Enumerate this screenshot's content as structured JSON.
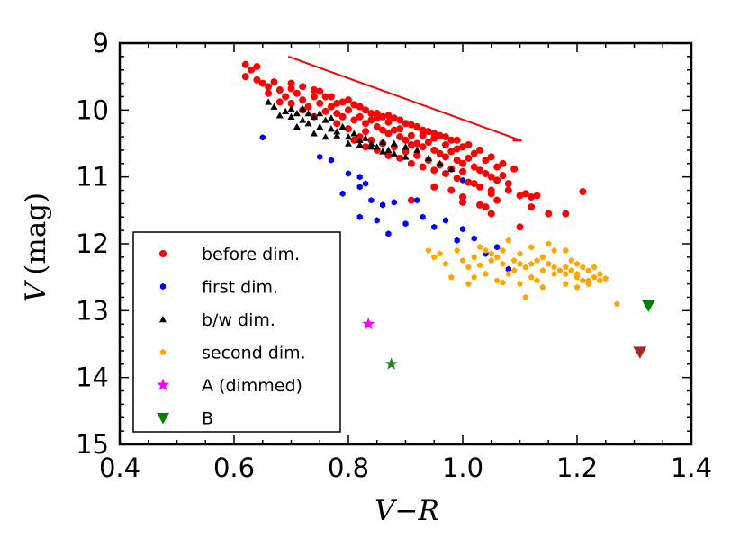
{
  "chart_data": {
    "type": "scatter",
    "title": "",
    "xlabel": "V−R",
    "ylabel_var": "V",
    "ylabel_unit": "(mag)",
    "xlim": [
      0.4,
      1.4
    ],
    "ylim": [
      15,
      9
    ],
    "y_inverted": true,
    "grid": false,
    "legend_placement": "lower-left",
    "x_ticks": [
      "0.4",
      "0.6",
      "0.8",
      "1.0",
      "1.2",
      "1.4"
    ],
    "y_ticks": [
      "9",
      "10",
      "11",
      "12",
      "13",
      "14",
      "15"
    ],
    "series": [
      {
        "name": "before dim.",
        "marker": "circle",
        "color": "#ff0000",
        "points": [
          [
            0.62,
            9.32
          ],
          [
            0.63,
            9.4
          ],
          [
            0.64,
            9.35
          ],
          [
            0.62,
            9.5
          ],
          [
            0.64,
            9.55
          ],
          [
            0.65,
            9.6
          ],
          [
            0.66,
            9.65
          ],
          [
            0.67,
            9.58
          ],
          [
            0.68,
            9.7
          ],
          [
            0.66,
            9.75
          ],
          [
            0.69,
            9.8
          ],
          [
            0.7,
            9.68
          ],
          [
            0.71,
            9.75
          ],
          [
            0.7,
            9.9
          ],
          [
            0.72,
            9.85
          ],
          [
            0.73,
            9.95
          ],
          [
            0.68,
            9.88
          ],
          [
            0.74,
            9.8
          ],
          [
            0.75,
            9.9
          ],
          [
            0.72,
            10.0
          ],
          [
            0.76,
            10.02
          ],
          [
            0.77,
            9.95
          ],
          [
            0.78,
            10.05
          ],
          [
            0.74,
            10.1
          ],
          [
            0.79,
            10.1
          ],
          [
            0.8,
            10.0
          ],
          [
            0.81,
            10.15
          ],
          [
            0.78,
            10.2
          ],
          [
            0.82,
            10.1
          ],
          [
            0.83,
            10.2
          ],
          [
            0.84,
            10.15
          ],
          [
            0.85,
            10.25
          ],
          [
            0.86,
            10.3
          ],
          [
            0.87,
            10.35
          ],
          [
            0.88,
            10.3
          ],
          [
            0.89,
            10.4
          ],
          [
            0.9,
            10.45
          ],
          [
            0.91,
            10.38
          ],
          [
            0.92,
            10.5
          ],
          [
            0.93,
            10.55
          ],
          [
            0.94,
            10.48
          ],
          [
            0.95,
            10.6
          ],
          [
            0.96,
            10.65
          ],
          [
            0.97,
            10.7
          ],
          [
            0.98,
            10.62
          ],
          [
            0.99,
            10.75
          ],
          [
            1.0,
            10.8
          ],
          [
            1.01,
            10.72
          ],
          [
            1.02,
            10.85
          ],
          [
            1.03,
            10.9
          ],
          [
            1.04,
            10.95
          ],
          [
            1.05,
            11.0
          ],
          [
            1.06,
            11.05
          ],
          [
            1.07,
            10.98
          ],
          [
            1.08,
            11.1
          ],
          [
            0.83,
            10.32
          ],
          [
            0.85,
            10.12
          ],
          [
            0.87,
            10.18
          ],
          [
            0.89,
            10.28
          ],
          [
            0.91,
            10.52
          ],
          [
            0.93,
            10.38
          ],
          [
            0.95,
            10.42
          ],
          [
            0.97,
            10.52
          ],
          [
            0.99,
            10.58
          ],
          [
            0.8,
            10.28
          ],
          [
            0.82,
            10.4
          ],
          [
            0.84,
            10.45
          ],
          [
            0.86,
            10.5
          ],
          [
            0.88,
            10.55
          ],
          [
            0.9,
            10.62
          ],
          [
            0.92,
            10.68
          ],
          [
            0.94,
            10.75
          ],
          [
            0.96,
            10.82
          ],
          [
            0.98,
            10.88
          ],
          [
            1.0,
            10.92
          ],
          [
            0.75,
            9.72
          ],
          [
            0.77,
            9.8
          ],
          [
            0.79,
            9.88
          ],
          [
            0.81,
            9.92
          ],
          [
            0.83,
            10.0
          ],
          [
            0.85,
            10.05
          ],
          [
            0.87,
            10.08
          ],
          [
            0.89,
            10.15
          ],
          [
            0.91,
            10.22
          ],
          [
            0.93,
            10.3
          ],
          [
            0.95,
            10.35
          ],
          [
            0.97,
            10.4
          ],
          [
            0.99,
            10.45
          ],
          [
            1.01,
            10.52
          ],
          [
            1.03,
            10.6
          ],
          [
            1.05,
            10.7
          ],
          [
            1.07,
            10.8
          ],
          [
            1.09,
            10.88
          ],
          [
            0.7,
            9.6
          ],
          [
            0.72,
            9.65
          ],
          [
            0.74,
            9.7
          ],
          [
            0.76,
            9.8
          ],
          [
            0.78,
            9.9
          ],
          [
            0.8,
            9.85
          ],
          [
            0.82,
            9.95
          ],
          [
            0.84,
            10.05
          ],
          [
            0.86,
            10.1
          ],
          [
            0.88,
            10.12
          ],
          [
            0.9,
            10.2
          ],
          [
            0.92,
            10.25
          ],
          [
            0.94,
            10.32
          ],
          [
            0.96,
            10.38
          ],
          [
            0.98,
            10.45
          ],
          [
            1.0,
            10.55
          ],
          [
            1.02,
            10.65
          ],
          [
            1.04,
            10.75
          ],
          [
            1.06,
            10.85
          ],
          [
            0.81,
            10.45
          ],
          [
            0.83,
            10.55
          ],
          [
            0.85,
            10.6
          ],
          [
            0.87,
            10.68
          ],
          [
            0.89,
            10.72
          ],
          [
            0.91,
            10.8
          ],
          [
            0.93,
            10.85
          ],
          [
            0.95,
            10.9
          ],
          [
            0.97,
            10.95
          ],
          [
            0.99,
            11.02
          ],
          [
            1.01,
            11.08
          ],
          [
            1.03,
            11.15
          ],
          [
            1.05,
            11.2
          ],
          [
            0.91,
            11.35
          ],
          [
            0.95,
            11.15
          ],
          [
            0.98,
            11.2
          ],
          [
            1.0,
            11.3
          ],
          [
            1.02,
            11.1
          ],
          [
            1.04,
            11.45
          ],
          [
            1.05,
            11.25
          ],
          [
            1.06,
            11.35
          ],
          [
            1.08,
            11.2
          ],
          [
            1.1,
            11.28
          ],
          [
            1.11,
            11.25
          ],
          [
            1.12,
            11.3
          ],
          [
            1.13,
            11.28
          ],
          [
            1.1,
            11.75
          ],
          [
            1.15,
            11.55
          ],
          [
            1.18,
            11.55
          ],
          [
            1.21,
            11.22
          ],
          [
            1.12,
            11.45
          ],
          [
            1.05,
            11.55
          ],
          [
            1.03,
            11.42
          ],
          [
            1.0,
            11.38
          ]
        ]
      },
      {
        "name": "first dim.",
        "marker": "hexagon",
        "color": "#0000ff",
        "points": [
          [
            0.65,
            10.41
          ],
          [
            0.75,
            10.7
          ],
          [
            0.77,
            10.75
          ],
          [
            0.8,
            10.95
          ],
          [
            0.82,
            11.0
          ],
          [
            0.82,
            11.15
          ],
          [
            0.83,
            11.1
          ],
          [
            0.79,
            11.25
          ],
          [
            0.84,
            11.35
          ],
          [
            0.86,
            11.42
          ],
          [
            0.88,
            11.38
          ],
          [
            0.82,
            11.6
          ],
          [
            0.85,
            11.65
          ],
          [
            0.87,
            11.85
          ],
          [
            0.9,
            11.7
          ],
          [
            0.92,
            11.35
          ],
          [
            0.93,
            11.6
          ],
          [
            0.95,
            11.75
          ],
          [
            0.97,
            11.65
          ],
          [
            0.99,
            11.95
          ],
          [
            1.0,
            11.78
          ],
          [
            1.0,
            11.05
          ],
          [
            1.02,
            11.92
          ],
          [
            1.04,
            12.15
          ],
          [
            1.06,
            12.05
          ],
          [
            1.08,
            12.38
          ]
        ]
      },
      {
        "name": "b/w dim.",
        "marker": "triangle-up",
        "color": "#000000",
        "points": [
          [
            0.66,
            9.88
          ],
          [
            0.67,
            9.95
          ],
          [
            0.68,
            10.08
          ],
          [
            0.69,
            10.02
          ],
          [
            0.7,
            10.1
          ],
          [
            0.7,
            9.98
          ],
          [
            0.71,
            10.05
          ],
          [
            0.72,
            10.15
          ],
          [
            0.73,
            10.2
          ],
          [
            0.73,
            10.05
          ],
          [
            0.74,
            10.1
          ],
          [
            0.75,
            10.25
          ],
          [
            0.76,
            10.15
          ],
          [
            0.77,
            10.28
          ],
          [
            0.78,
            10.32
          ],
          [
            0.79,
            10.25
          ],
          [
            0.8,
            10.4
          ],
          [
            0.81,
            10.35
          ],
          [
            0.82,
            10.45
          ],
          [
            0.83,
            10.42
          ],
          [
            0.84,
            10.5
          ],
          [
            0.85,
            10.55
          ],
          [
            0.86,
            10.48
          ],
          [
            0.87,
            10.6
          ],
          [
            0.88,
            10.65
          ],
          [
            0.9,
            10.7
          ],
          [
            0.92,
            10.6
          ],
          [
            0.94,
            10.72
          ],
          [
            0.96,
            10.8
          ],
          [
            0.98,
            10.88
          ],
          [
            0.71,
            10.25
          ],
          [
            0.74,
            10.35
          ],
          [
            0.76,
            10.4
          ],
          [
            0.78,
            10.38
          ],
          [
            0.8,
            10.5
          ],
          [
            0.82,
            10.52
          ],
          [
            0.84,
            10.55
          ],
          [
            0.86,
            10.62
          ],
          [
            0.88,
            10.5
          ],
          [
            0.9,
            10.55
          ],
          [
            0.72,
            9.98
          ],
          [
            0.75,
            10.05
          ],
          [
            0.77,
            10.12
          ]
        ]
      },
      {
        "name": "second dim.",
        "marker": "pentagon",
        "color": "#ffa500",
        "points": [
          [
            0.94,
            12.1
          ],
          [
            0.96,
            12.15
          ],
          [
            0.97,
            12.3
          ],
          [
            0.99,
            12.1
          ],
          [
            1.0,
            12.25
          ],
          [
            1.01,
            12.35
          ],
          [
            1.02,
            12.2
          ],
          [
            1.03,
            12.05
          ],
          [
            1.04,
            12.1
          ],
          [
            1.05,
            12.15
          ],
          [
            1.06,
            12.2
          ],
          [
            1.07,
            12.1
          ],
          [
            1.08,
            11.95
          ],
          [
            1.09,
            12.25
          ],
          [
            1.1,
            12.3
          ],
          [
            1.11,
            12.35
          ],
          [
            1.12,
            12.3
          ],
          [
            1.13,
            12.25
          ],
          [
            1.14,
            12.2
          ],
          [
            1.15,
            12.3
          ],
          [
            1.16,
            12.35
          ],
          [
            1.17,
            12.4
          ],
          [
            1.18,
            12.45
          ],
          [
            1.19,
            12.4
          ],
          [
            1.2,
            12.5
          ],
          [
            1.21,
            12.55
          ],
          [
            1.22,
            12.6
          ],
          [
            1.23,
            12.5
          ],
          [
            1.24,
            12.55
          ],
          [
            1.25,
            12.52
          ],
          [
            1.02,
            12.5
          ],
          [
            1.04,
            12.45
          ],
          [
            1.06,
            12.55
          ],
          [
            1.08,
            12.45
          ],
          [
            1.1,
            12.6
          ],
          [
            1.12,
            12.5
          ],
          [
            1.14,
            12.65
          ],
          [
            1.16,
            12.45
          ],
          [
            1.18,
            12.6
          ],
          [
            1.2,
            12.65
          ],
          [
            1.22,
            12.55
          ],
          [
            1.11,
            12.8
          ],
          [
            1.09,
            12.4
          ],
          [
            1.13,
            12.55
          ],
          [
            1.15,
            12.0
          ],
          [
            1.18,
            12.1
          ],
          [
            1.19,
            12.25
          ],
          [
            1.21,
            12.35
          ],
          [
            1.23,
            12.35
          ],
          [
            1.2,
            12.3
          ],
          [
            1.27,
            12.9
          ],
          [
            0.98,
            12.5
          ],
          [
            1.01,
            12.6
          ],
          [
            1.05,
            12.25
          ],
          [
            1.07,
            12.3
          ],
          [
            1.1,
            12.15
          ],
          [
            1.12,
            12.05
          ],
          [
            1.14,
            12.4
          ],
          [
            1.16,
            12.1
          ],
          [
            1.18,
            12.35
          ],
          [
            1.2,
            12.45
          ],
          [
            1.22,
            12.4
          ],
          [
            1.24,
            12.45
          ],
          [
            1.07,
            12.58
          ],
          [
            1.03,
            12.32
          ],
          [
            0.95,
            12.2
          ]
        ]
      },
      {
        "name": "A (dimmed)",
        "marker": "star",
        "color": "#ff00ff",
        "points": [
          [
            0.835,
            13.2
          ]
        ]
      },
      {
        "name": "",
        "marker": "star",
        "color": "#228b22",
        "points": [
          [
            0.875,
            13.8
          ]
        ]
      },
      {
        "name": "B",
        "marker": "triangle-down",
        "color": "#008000",
        "points": [
          [
            1.325,
            12.92
          ]
        ]
      },
      {
        "name": "",
        "marker": "triangle-down",
        "color": "#a52a2a",
        "points": [
          [
            1.31,
            13.62
          ]
        ]
      }
    ],
    "lines": [
      {
        "color": "#ff0000",
        "points": [
          [
            0.695,
            9.2
          ],
          [
            1.1,
            10.45
          ]
        ]
      }
    ],
    "legend_entries": [
      "before dim.",
      "first dim.",
      "b/w dim.",
      "second dim.",
      "A (dimmed)",
      "B"
    ]
  }
}
